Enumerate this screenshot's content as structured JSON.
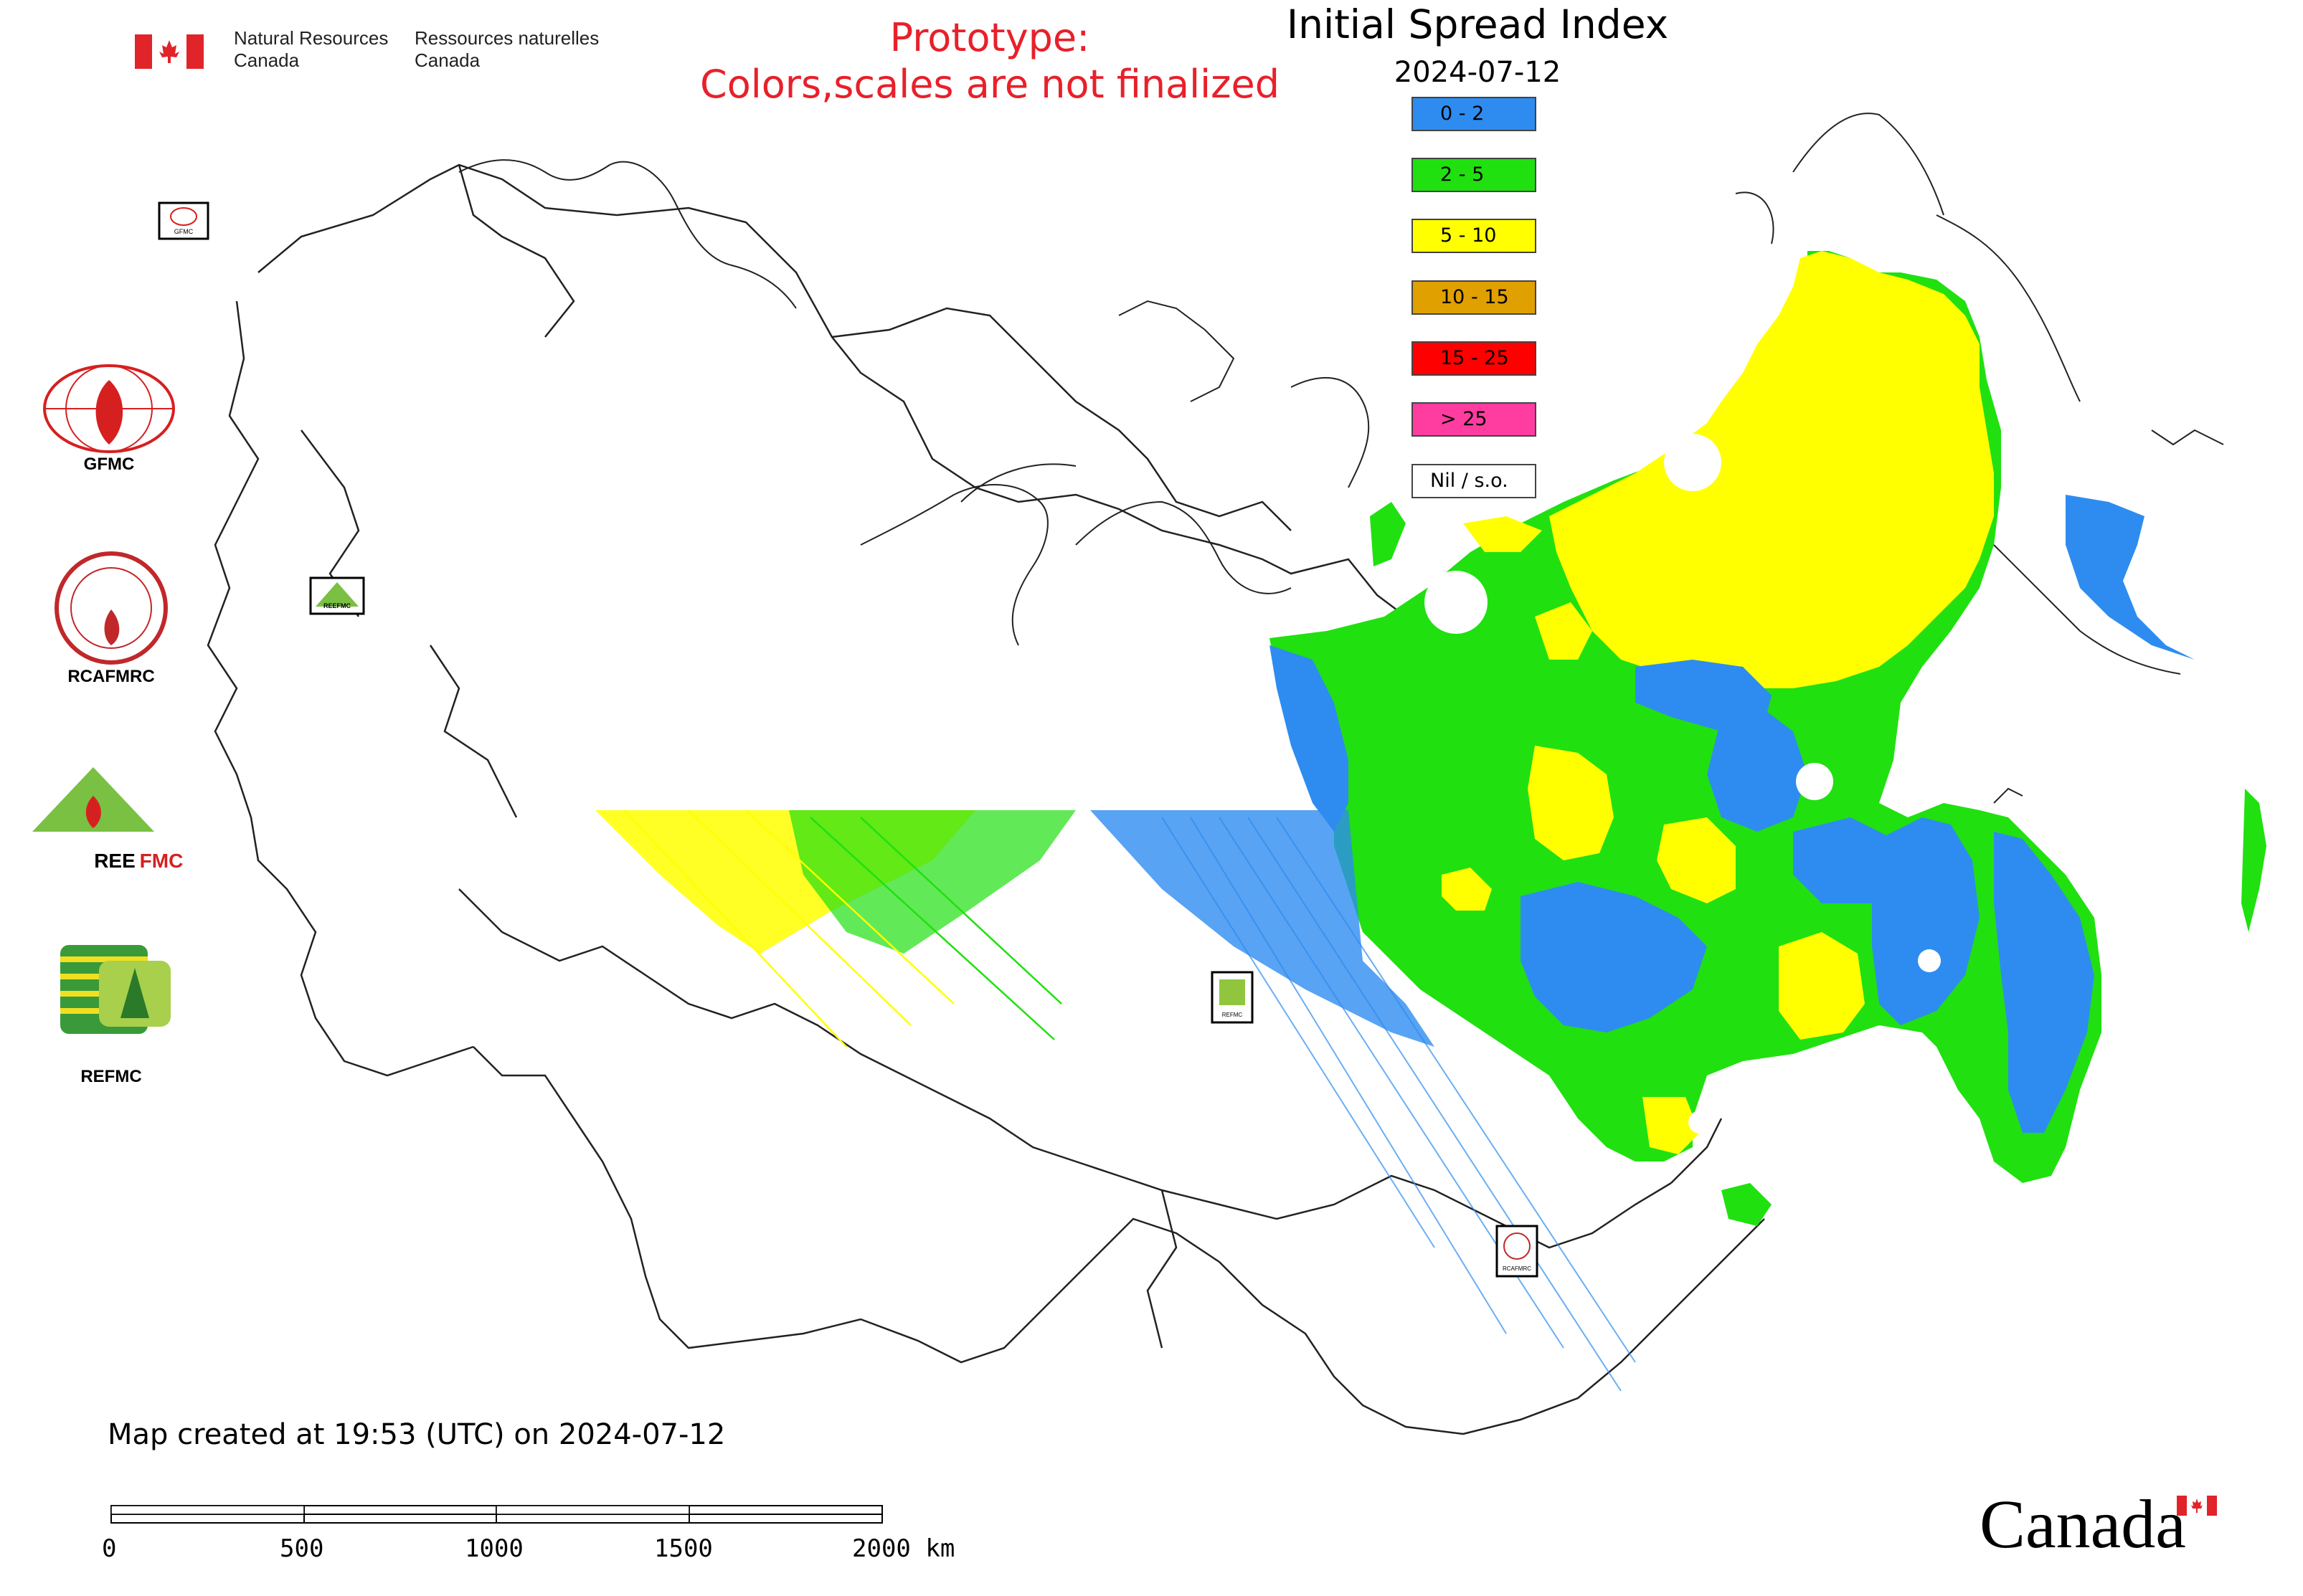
{
  "header": {
    "agency_en": [
      "Natural Resources",
      "Canada"
    ],
    "agency_fr": [
      "Ressources naturelles",
      "Canada"
    ],
    "prototype_notice": [
      "Prototype:",
      "Colors,scales are not finalized"
    ]
  },
  "map": {
    "title": "Initial Spread Index",
    "date": "2024-07-12",
    "legend": [
      {
        "label": "0 - 2",
        "color": "#2e8cf0"
      },
      {
        "label": "2 - 5",
        "color": "#20e010"
      },
      {
        "label": "5 - 10",
        "color": "#ffff00"
      },
      {
        "label": "10 - 15",
        "color": "#e0a000"
      },
      {
        "label": "15 - 25",
        "color": "#ff0000"
      },
      {
        "label": "> 25",
        "color": "#ff3ca0"
      },
      {
        "label": "Nil / s.o.",
        "color": "#ffffff"
      }
    ]
  },
  "organizations": [
    {
      "name": "GFMC",
      "icon": "gfmc-logo-icon"
    },
    {
      "name": "RCAFMRC",
      "icon": "rcafmrc-logo-icon"
    },
    {
      "name": "REEFMC",
      "icon": "reefmc-logo-icon"
    },
    {
      "name": "REFMC",
      "icon": "refmc-logo-icon"
    }
  ],
  "map_markers": {
    "gfmc": "GFMC",
    "reefmc": "REEFMC",
    "refmc": "REFMC",
    "rcafmrc": "RCAFMRC"
  },
  "footer": {
    "created": "Map created at 19:53 (UTC) on 2024-07-12",
    "scale_labels": [
      "0",
      "500",
      "1000",
      "1500",
      "2000 km"
    ]
  },
  "wordmark": "Canada"
}
